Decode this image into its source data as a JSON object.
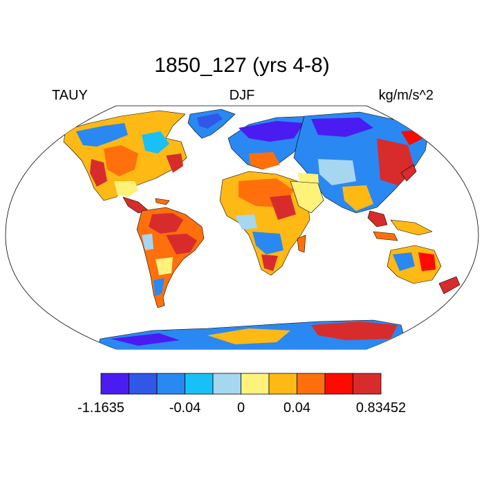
{
  "title": "1850_127 (yrs 4-8)",
  "left_label": "TAUY",
  "center_label": "DJF",
  "right_label": "kg/m/s^2",
  "colorbar": {
    "colors": [
      "#4a1cf2",
      "#3057e6",
      "#2a88f2",
      "#18c0f6",
      "#a6d6f0",
      "#fff27a",
      "#ffb914",
      "#ff700c",
      "#fd0a00",
      "#d82c2c"
    ],
    "tick_labels": [
      "-1.1635",
      "-0.04",
      "0",
      "0.04",
      "0.83452"
    ],
    "tick_edges": [
      0,
      3,
      5,
      7,
      10
    ]
  },
  "map": {
    "projection": "Robinson",
    "ocean_color": "#ffffff",
    "coastline_color": "#000000"
  }
}
